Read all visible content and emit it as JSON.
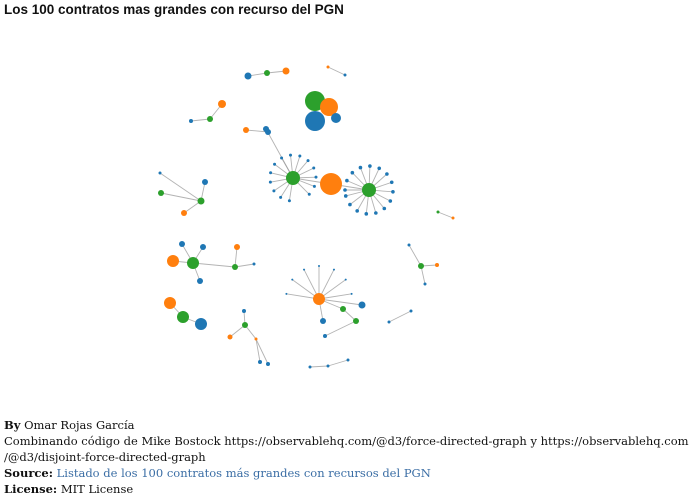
{
  "header": {
    "title": "Los 100 contratos mas grandes con recurso del PGN"
  },
  "colors": {
    "blue": "#1f77b4",
    "orange": "#ff7f0e",
    "green": "#2ca02c",
    "link": "#999999",
    "source_link": "#3b6ea5"
  },
  "node_types": [
    "blue",
    "orange",
    "green"
  ],
  "graph": {
    "nodes": [
      {
        "id": "c1a",
        "type": "blue"
      },
      {
        "id": "c1b",
        "type": "green"
      },
      {
        "id": "c1c",
        "type": "orange"
      },
      {
        "id": "c2a",
        "type": "orange"
      },
      {
        "id": "c2b",
        "type": "blue"
      },
      {
        "id": "c2c",
        "type": "blue"
      },
      {
        "id": "c2d",
        "type": "green"
      },
      {
        "id": "c3hub",
        "type": "green"
      },
      {
        "id": "c3a",
        "type": "orange"
      },
      {
        "id": "c3b",
        "type": "blue"
      },
      {
        "id": "c3c",
        "type": "blue"
      },
      {
        "id": "c3d",
        "type": "blue"
      },
      {
        "id": "c4a",
        "type": "orange"
      },
      {
        "id": "c4b",
        "type": "green"
      },
      {
        "id": "c4c",
        "type": "blue"
      },
      {
        "id": "c5hub",
        "type": "green"
      },
      {
        "id": "c5a",
        "type": "orange"
      },
      {
        "id": "c5b",
        "type": "blue"
      },
      {
        "id": "c5l1",
        "type": "blue"
      },
      {
        "id": "c5l2",
        "type": "blue"
      },
      {
        "id": "c5l3",
        "type": "blue"
      },
      {
        "id": "c5l4",
        "type": "blue"
      },
      {
        "id": "c5l5",
        "type": "blue"
      },
      {
        "id": "c5l6",
        "type": "blue"
      },
      {
        "id": "c5l7",
        "type": "blue"
      },
      {
        "id": "c5l8",
        "type": "blue"
      },
      {
        "id": "c5l9",
        "type": "blue"
      },
      {
        "id": "c5l10",
        "type": "blue"
      },
      {
        "id": "c5l11",
        "type": "blue"
      },
      {
        "id": "c5l12",
        "type": "blue"
      },
      {
        "id": "c5l13",
        "type": "blue"
      },
      {
        "id": "c5l14",
        "type": "blue"
      },
      {
        "id": "c6big",
        "type": "orange"
      },
      {
        "id": "c6hub",
        "type": "green"
      },
      {
        "id": "c6l1",
        "type": "blue"
      },
      {
        "id": "c6l2",
        "type": "blue"
      },
      {
        "id": "c6l3",
        "type": "blue"
      },
      {
        "id": "c6l4",
        "type": "blue"
      },
      {
        "id": "c6l5",
        "type": "blue"
      },
      {
        "id": "c6l6",
        "type": "blue"
      },
      {
        "id": "c6l7",
        "type": "blue"
      },
      {
        "id": "c6l8",
        "type": "blue"
      },
      {
        "id": "c6l9",
        "type": "blue"
      },
      {
        "id": "c6l10",
        "type": "blue"
      },
      {
        "id": "c6l11",
        "type": "blue"
      },
      {
        "id": "c6l12",
        "type": "blue"
      },
      {
        "id": "c6l13",
        "type": "blue"
      },
      {
        "id": "c6l14",
        "type": "blue"
      },
      {
        "id": "c6l15",
        "type": "blue"
      },
      {
        "id": "c6l16",
        "type": "blue"
      },
      {
        "id": "c7a",
        "type": "orange"
      },
      {
        "id": "c7b",
        "type": "blue"
      },
      {
        "id": "c7c",
        "type": "green"
      },
      {
        "id": "c8hub",
        "type": "green"
      },
      {
        "id": "c8a",
        "type": "blue"
      },
      {
        "id": "c8b",
        "type": "orange"
      },
      {
        "id": "c8c",
        "type": "green"
      },
      {
        "id": "c8d",
        "type": "blue"
      },
      {
        "id": "c9a",
        "type": "green"
      },
      {
        "id": "c9b",
        "type": "orange"
      },
      {
        "id": "c10hub",
        "type": "green"
      },
      {
        "id": "c10a",
        "type": "orange"
      },
      {
        "id": "c10b",
        "type": "blue"
      },
      {
        "id": "c10c",
        "type": "blue"
      },
      {
        "id": "c10d",
        "type": "blue"
      },
      {
        "id": "c10e",
        "type": "green"
      },
      {
        "id": "c10f",
        "type": "orange"
      },
      {
        "id": "c10g",
        "type": "blue"
      },
      {
        "id": "c11a",
        "type": "orange"
      },
      {
        "id": "c11b",
        "type": "green"
      },
      {
        "id": "c11c",
        "type": "blue"
      },
      {
        "id": "c12hub",
        "type": "orange"
      },
      {
        "id": "c12a",
        "type": "green"
      },
      {
        "id": "c12b",
        "type": "blue"
      },
      {
        "id": "c12c",
        "type": "green"
      },
      {
        "id": "c12d",
        "type": "blue"
      },
      {
        "id": "c12e",
        "type": "blue"
      },
      {
        "id": "c12l1",
        "type": "blue"
      },
      {
        "id": "c12l2",
        "type": "blue"
      },
      {
        "id": "c12l3",
        "type": "blue"
      },
      {
        "id": "c12l4",
        "type": "blue"
      },
      {
        "id": "c12l5",
        "type": "blue"
      },
      {
        "id": "c12l6",
        "type": "blue"
      },
      {
        "id": "c12l7",
        "type": "blue"
      },
      {
        "id": "c13hub",
        "type": "green"
      },
      {
        "id": "c13a",
        "type": "orange"
      },
      {
        "id": "c13b",
        "type": "blue"
      },
      {
        "id": "c13c",
        "type": "orange"
      },
      {
        "id": "c13d",
        "type": "blue"
      },
      {
        "id": "c13e",
        "type": "blue"
      },
      {
        "id": "c14hub",
        "type": "green"
      },
      {
        "id": "c14a",
        "type": "orange"
      },
      {
        "id": "c14b",
        "type": "blue"
      },
      {
        "id": "c14c",
        "type": "blue"
      },
      {
        "id": "c15a",
        "type": "blue"
      },
      {
        "id": "c15b",
        "type": "blue"
      },
      {
        "id": "c16a",
        "type": "blue"
      },
      {
        "id": "c16b",
        "type": "blue"
      },
      {
        "id": "c16c",
        "type": "blue"
      }
    ],
    "links": [
      [
        "c1a",
        "c1b"
      ],
      [
        "c1b",
        "c1c"
      ],
      [
        "c2a",
        "c2b"
      ],
      [
        "c3hub",
        "c3a"
      ],
      [
        "c3hub",
        "c3b"
      ],
      [
        "c3hub",
        "c3c"
      ],
      [
        "c3hub",
        "c3d"
      ],
      [
        "c4a",
        "c4b"
      ],
      [
        "c4b",
        "c4c"
      ],
      [
        "c5hub",
        "c5a"
      ],
      [
        "c5hub",
        "c5b"
      ],
      [
        "c5hub",
        "c5l1"
      ],
      [
        "c5hub",
        "c5l2"
      ],
      [
        "c5hub",
        "c5l3"
      ],
      [
        "c5hub",
        "c5l4"
      ],
      [
        "c5hub",
        "c5l5"
      ],
      [
        "c5hub",
        "c5l6"
      ],
      [
        "c5hub",
        "c5l7"
      ],
      [
        "c5hub",
        "c5l8"
      ],
      [
        "c5hub",
        "c5l9"
      ],
      [
        "c5hub",
        "c5l10"
      ],
      [
        "c5hub",
        "c5l11"
      ],
      [
        "c5hub",
        "c5l12"
      ],
      [
        "c5hub",
        "c5l13"
      ],
      [
        "c5hub",
        "c5l14"
      ],
      [
        "c6big",
        "c6hub"
      ],
      [
        "c6hub",
        "c6l1"
      ],
      [
        "c6hub",
        "c6l2"
      ],
      [
        "c6hub",
        "c6l3"
      ],
      [
        "c6hub",
        "c6l4"
      ],
      [
        "c6hub",
        "c6l5"
      ],
      [
        "c6hub",
        "c6l6"
      ],
      [
        "c6hub",
        "c6l7"
      ],
      [
        "c6hub",
        "c6l8"
      ],
      [
        "c6hub",
        "c6l9"
      ],
      [
        "c6hub",
        "c6l10"
      ],
      [
        "c6hub",
        "c6l11"
      ],
      [
        "c6hub",
        "c6l12"
      ],
      [
        "c6hub",
        "c6l13"
      ],
      [
        "c6hub",
        "c6l14"
      ],
      [
        "c6hub",
        "c6l15"
      ],
      [
        "c6hub",
        "c6l16"
      ],
      [
        "c7a",
        "c7b"
      ],
      [
        "c8hub",
        "c8a"
      ],
      [
        "c8hub",
        "c8b"
      ],
      [
        "c8hub",
        "c8c"
      ],
      [
        "c8hub",
        "c8d"
      ],
      [
        "c9a",
        "c9b"
      ],
      [
        "c10hub",
        "c10a"
      ],
      [
        "c10hub",
        "c10b"
      ],
      [
        "c10hub",
        "c10c"
      ],
      [
        "c10hub",
        "c10d"
      ],
      [
        "c10hub",
        "c10e"
      ],
      [
        "c10e",
        "c10f"
      ],
      [
        "c10e",
        "c10g"
      ],
      [
        "c11a",
        "c11b"
      ],
      [
        "c11b",
        "c11c"
      ],
      [
        "c12hub",
        "c12a"
      ],
      [
        "c12hub",
        "c12b"
      ],
      [
        "c12a",
        "c12c"
      ],
      [
        "c12c",
        "c12d"
      ],
      [
        "c12hub",
        "c12e"
      ],
      [
        "c12hub",
        "c12l1"
      ],
      [
        "c12hub",
        "c12l2"
      ],
      [
        "c12hub",
        "c12l3"
      ],
      [
        "c12hub",
        "c12l4"
      ],
      [
        "c12hub",
        "c12l5"
      ],
      [
        "c12hub",
        "c12l6"
      ],
      [
        "c12hub",
        "c12l7"
      ],
      [
        "c13hub",
        "c13a"
      ],
      [
        "c13hub",
        "c13b"
      ],
      [
        "c13hub",
        "c13c"
      ],
      [
        "c13c",
        "c13d"
      ],
      [
        "c13c",
        "c13e"
      ],
      [
        "c14hub",
        "c14a"
      ],
      [
        "c14hub",
        "c14b"
      ],
      [
        "c14hub",
        "c14c"
      ],
      [
        "c15a",
        "c15b"
      ],
      [
        "c16a",
        "c16b"
      ],
      [
        "c16b",
        "c16c"
      ]
    ]
  },
  "footer": {
    "by_label": "By",
    "author": "Omar Rojas García",
    "credit": "Combinando código de Mike Bostock https://observablehq.com/@d3/force-directed-graph y https://observablehq.com",
    "credit_cont": "/@d3/disjoint-force-directed-graph",
    "source_label": "Source:",
    "source_text": "Listado de los 100 contratos más grandes con recursos del PGN",
    "license_label": "License:",
    "license_text": "MIT License"
  }
}
